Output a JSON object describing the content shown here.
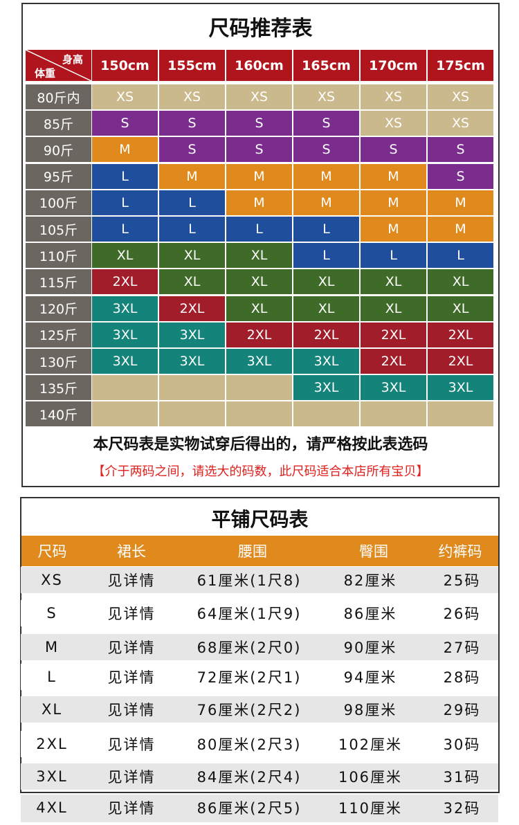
{
  "size_chart": {
    "title": "尺码推荐表",
    "corner": {
      "height_label": "身高",
      "weight_label": "体重"
    },
    "heights": [
      "150cm",
      "155cm",
      "160cm",
      "165cm",
      "170cm",
      "175cm"
    ],
    "size_colors": {
      "XS": "#c9b98c",
      "S": "#7b2d8e",
      "M": "#e08a1e",
      "L": "#1f4e9c",
      "XL": "#3f6b28",
      "2XL": "#a11d2a",
      "3XL": "#14837a"
    },
    "rows": [
      {
        "weight": "80斤内",
        "sizes": [
          "XS",
          "XS",
          "XS",
          "XS",
          "XS",
          "XS"
        ]
      },
      {
        "weight": "85斤",
        "sizes": [
          "S",
          "S",
          "S",
          "S",
          "XS",
          "XS"
        ]
      },
      {
        "weight": "90斤",
        "sizes": [
          "M",
          "S",
          "S",
          "S",
          "S",
          "S"
        ]
      },
      {
        "weight": "95斤",
        "sizes": [
          "L",
          "M",
          "M",
          "M",
          "M",
          "S"
        ]
      },
      {
        "weight": "100斤",
        "sizes": [
          "L",
          "L",
          "M",
          "M",
          "M",
          "M"
        ]
      },
      {
        "weight": "105斤",
        "sizes": [
          "L",
          "L",
          "L",
          "L",
          "M",
          "M"
        ]
      },
      {
        "weight": "110斤",
        "sizes": [
          "XL",
          "XL",
          "XL",
          "L",
          "L",
          "L"
        ]
      },
      {
        "weight": "115斤",
        "sizes": [
          "2XL",
          "XL",
          "XL",
          "XL",
          "XL",
          "XL"
        ]
      },
      {
        "weight": "120斤",
        "sizes": [
          "3XL",
          "2XL",
          "XL",
          "XL",
          "XL",
          "XL"
        ]
      },
      {
        "weight": "125斤",
        "sizes": [
          "3XL",
          "3XL",
          "2XL",
          "2XL",
          "2XL",
          "2XL"
        ]
      },
      {
        "weight": "130斤",
        "sizes": [
          "3XL",
          "3XL",
          "3XL",
          "3XL",
          "2XL",
          "2XL"
        ]
      },
      {
        "weight": "135斤",
        "sizes": [
          null,
          null,
          null,
          "3XL",
          "3XL",
          "3XL"
        ]
      },
      {
        "weight": "140斤",
        "sizes": [
          null,
          null,
          null,
          null,
          null,
          null
        ]
      }
    ],
    "note": "本尺码表是实物试穿后得出的，请严格按此表选码",
    "warning": "【介于两码之间，请选大的码数，此尺码适合本店所有宝贝】"
  },
  "flat_chart": {
    "title": "平铺尺码表",
    "headers": [
      "尺码",
      "裙长",
      "腰围",
      "臀围",
      "约裤码"
    ],
    "rows": [
      [
        "XS",
        "见详情",
        "61厘米(1尺8)",
        "82厘米",
        "25码"
      ],
      [
        "S",
        "见详情",
        "64厘米(1尺9)",
        "86厘米",
        "26码"
      ],
      [
        "M",
        "见详情",
        "68厘米(2尺0)",
        "90厘米",
        "27码"
      ],
      [
        "L",
        "见详情",
        "72厘米(2尺1)",
        "94厘米",
        "28码"
      ],
      [
        "XL",
        "见详情",
        "76厘米(2尺2)",
        "98厘米",
        "29码"
      ],
      [
        "2XL",
        "见详情",
        "80厘米(2尺3)",
        "102厘米",
        "30码"
      ],
      [
        "3XL",
        "见详情",
        "84厘米(2尺4)",
        "106厘米",
        "31码"
      ],
      [
        "4XL",
        "见详情",
        "86厘米(2尺5)",
        "110厘米",
        "32码"
      ]
    ]
  }
}
